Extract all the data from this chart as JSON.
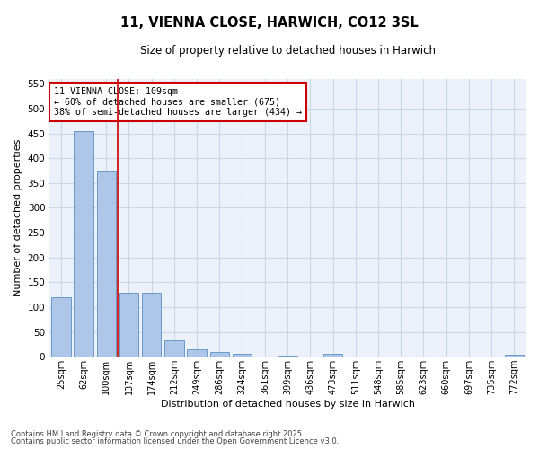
{
  "title": "11, VIENNA CLOSE, HARWICH, CO12 3SL",
  "subtitle": "Size of property relative to detached houses in Harwich",
  "xlabel": "Distribution of detached houses by size in Harwich",
  "ylabel": "Number of detached properties",
  "categories": [
    "25sqm",
    "62sqm",
    "100sqm",
    "137sqm",
    "174sqm",
    "212sqm",
    "249sqm",
    "286sqm",
    "324sqm",
    "361sqm",
    "399sqm",
    "436sqm",
    "473sqm",
    "511sqm",
    "548sqm",
    "585sqm",
    "623sqm",
    "660sqm",
    "697sqm",
    "735sqm",
    "772sqm"
  ],
  "values": [
    120,
    455,
    375,
    128,
    128,
    33,
    15,
    10,
    6,
    0,
    3,
    0,
    5,
    0,
    0,
    0,
    0,
    0,
    0,
    0,
    4
  ],
  "bar_color": "#aec6e8",
  "bar_edge_color": "#5a8fc2",
  "grid_color": "#c8d8e8",
  "background_color": "#edf2fa",
  "vline_x_index": 2,
  "vline_color": "#cc0000",
  "annotation_text": "11 VIENNA CLOSE: 109sqm\n← 60% of detached houses are smaller (675)\n38% of semi-detached houses are larger (434) →",
  "annotation_box_color": "#cc0000",
  "ylim": [
    0,
    560
  ],
  "yticks": [
    0,
    50,
    100,
    150,
    200,
    250,
    300,
    350,
    400,
    450,
    500,
    550
  ],
  "footnote1": "Contains HM Land Registry data © Crown copyright and database right 2025.",
  "footnote2": "Contains public sector information licensed under the Open Government Licence v3.0."
}
